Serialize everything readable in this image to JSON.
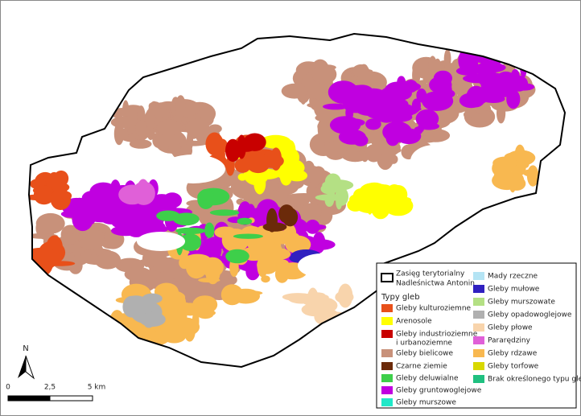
{
  "legend": {
    "boundary": [
      "Zasięg terytorialny",
      "Nadleśnictwa Antonin"
    ],
    "title": "Typy gleb",
    "items": [
      {
        "label": [
          "Gleby kulturoziemne"
        ],
        "color": "#e8501a"
      },
      {
        "label": [
          "Arenosole"
        ],
        "color": "#ffff00"
      },
      {
        "label": [
          "Gleby industrioziemne",
          "i urbanoziemne"
        ],
        "color": "#c80000"
      },
      {
        "label": [
          "Gleby bielicowe"
        ],
        "color": "#c8917a"
      },
      {
        "label": [
          "Czarne ziemie"
        ],
        "color": "#6b2a0a"
      },
      {
        "label": [
          "Gleby deluwialne"
        ],
        "color": "#3ecf4a"
      },
      {
        "label": [
          "Gleby gruntowoglejowe"
        ],
        "color": "#c000e0"
      },
      {
        "label": [
          "Gleby murszowe"
        ],
        "color": "#20e8c8"
      },
      {
        "label": [
          "Mady rzeczne"
        ],
        "color": "#b4e4f4"
      },
      {
        "label": [
          "Gleby mułowe"
        ],
        "color": "#3020c0"
      },
      {
        "label": [
          "Gleby murszowate"
        ],
        "color": "#b4e084"
      },
      {
        "label": [
          "Gleby opadowoglejowe"
        ],
        "color": "#b0b0b0"
      },
      {
        "label": [
          "Gleby płowe"
        ],
        "color": "#f8d4ac"
      },
      {
        "label": [
          "Pararędziny"
        ],
        "color": "#e060d8"
      },
      {
        "label": [
          "Gleby rdzawe"
        ],
        "color": "#f8b850"
      },
      {
        "label": [
          "Gleby torfowe"
        ],
        "color": "#d8d800"
      },
      {
        "label": [
          "Brak określonego typu gleby"
        ],
        "color": "#20c080"
      }
    ]
  },
  "north": "N",
  "scale": {
    "labels": [
      "0",
      "2,5",
      "5 km"
    ]
  }
}
